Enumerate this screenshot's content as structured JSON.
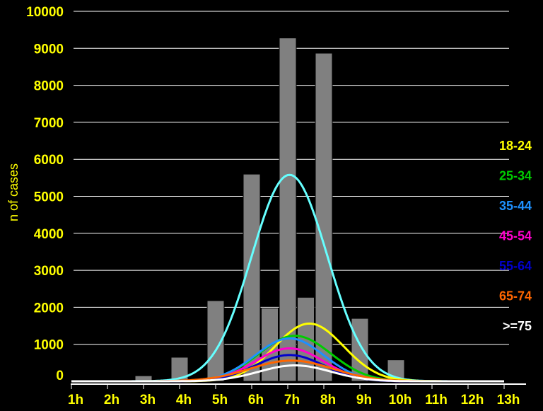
{
  "chart_data": {
    "type": "bar",
    "title": "",
    "xlabel": "",
    "ylabel": "n of cases",
    "ylim": [
      0,
      10000
    ],
    "yticks": [
      0,
      1000,
      2000,
      3000,
      4000,
      5000,
      6000,
      7000,
      8000,
      9000,
      10000
    ],
    "categories": [
      "1h",
      "2h",
      "3h",
      "4h",
      "5h",
      "6h",
      "7h",
      "8h",
      "9h",
      "10h",
      "11h",
      "12h",
      "13h"
    ],
    "bars": [
      {
        "x": 3,
        "value": 150
      },
      {
        "x": 4,
        "value": 650
      },
      {
        "x": 5,
        "value": 2180
      },
      {
        "x": 6,
        "value": 5600
      },
      {
        "x": 6.5,
        "value": 1980
      },
      {
        "x": 7,
        "value": 9280
      },
      {
        "x": 7.5,
        "value": 2270
      },
      {
        "x": 8,
        "value": 8870
      },
      {
        "x": 9,
        "value": 1700
      },
      {
        "x": 10,
        "value": 580
      },
      {
        "x": 11,
        "value": 40
      }
    ],
    "bar_color": "#808080",
    "curves": [
      {
        "color": "#66ffff",
        "peak_x": 7.05,
        "peak": 5580,
        "sigma": 1.05
      },
      {
        "color": "#ffff00",
        "peak_x": 7.6,
        "peak": 1560,
        "sigma": 0.95
      },
      {
        "color": "#00cc00",
        "peak_x": 7.2,
        "peak": 1230,
        "sigma": 1.0
      },
      {
        "color": "#1e90ff",
        "peak_x": 7.05,
        "peak": 1160,
        "sigma": 0.95
      },
      {
        "color": "#ff00cc",
        "peak_x": 7.05,
        "peak": 890,
        "sigma": 0.95
      },
      {
        "color": "#0000cc",
        "peak_x": 7.05,
        "peak": 710,
        "sigma": 0.95
      },
      {
        "color": "#ff6600",
        "peak_x": 7.1,
        "peak": 560,
        "sigma": 1.15
      },
      {
        "color": "#ffffff",
        "peak_x": 7.2,
        "peak": 430,
        "sigma": 1.0
      }
    ],
    "legend": [
      {
        "label": "18-24",
        "color": "#ffff00"
      },
      {
        "label": "25-34",
        "color": "#00cc00"
      },
      {
        "label": "35-44",
        "color": "#1e90ff"
      },
      {
        "label": "45-54",
        "color": "#ff00cc"
      },
      {
        "label": "55-64",
        "color": "#0000cc"
      },
      {
        "label": "65-74",
        "color": "#ff6600"
      },
      {
        "label": ">=75",
        "color": "#ffffff"
      }
    ],
    "legend_position": "right",
    "grid": true
  }
}
